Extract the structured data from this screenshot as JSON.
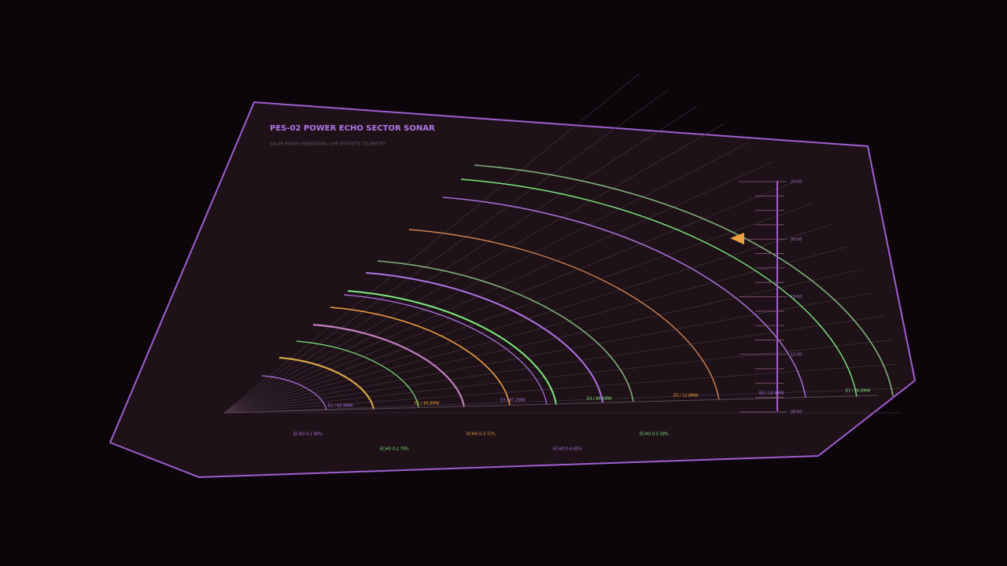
{
  "header": {
    "title": "PES-02  POWER ECHO SECTOR SONAR",
    "subtitle": "SOLAR POWER GENERATION / LIVE SYNTHETIC TELEMETRY"
  },
  "sectors": [
    "E1 / 62.4MW",
    "E2 / 84.8MW",
    "E3 / 87.2MW",
    "E4 / 89.6MW",
    "E5 / 12.8MW",
    "E6 / 14.4MW",
    "E7 / 36.8MW"
  ],
  "time_scale": [
    "24:00",
    "20:00",
    "16:00",
    "12:00",
    "08:00"
  ],
  "legend": [
    "ECHO 0-1 86%",
    "ECHO 0-2 79%",
    "ECHO 0-3 72%",
    "ECHO 0-4 65%",
    "ECHO 0-5 58%"
  ]
}
